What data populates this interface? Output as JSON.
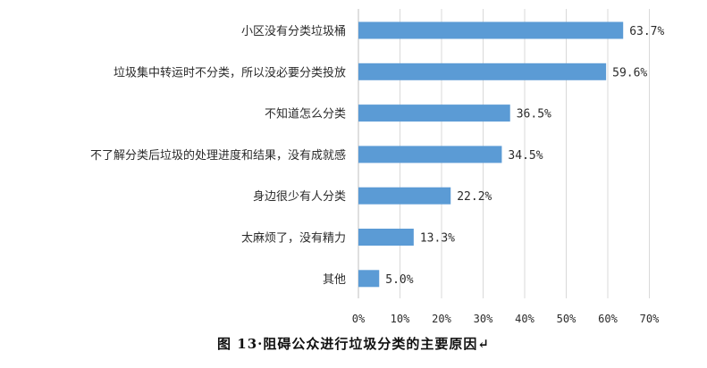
{
  "caption": "图 13·阻碍公众进行垃圾分类的主要原因↵",
  "colors": {
    "bar": "#5b9bd5",
    "grid": "#d9d9d9",
    "text": "#2b2b2b"
  },
  "chart_data": {
    "type": "bar",
    "orientation": "horizontal",
    "categories": [
      "小区没有分类垃圾桶",
      "垃圾集中转运时不分类，所以没必要分类投放",
      "不知道怎么分类",
      "不了解分类后垃圾的处理进度和结果，没有成就感",
      "身边很少有人分类",
      "太麻烦了，没有精力",
      "其他"
    ],
    "values": [
      63.7,
      59.6,
      36.5,
      34.5,
      22.2,
      13.3,
      5.0
    ],
    "value_labels": [
      "63.7%",
      "59.6%",
      "36.5%",
      "34.5%",
      "22.2%",
      "13.3%",
      "5.0%"
    ],
    "x_ticks": [
      0,
      10,
      20,
      30,
      40,
      50,
      60,
      70
    ],
    "x_tick_labels": [
      "0%",
      "10%",
      "20%",
      "30%",
      "40%",
      "50%",
      "60%",
      "70%"
    ],
    "xlim": [
      0,
      70
    ],
    "grid": true,
    "legend": "none",
    "title": "",
    "xlabel": "",
    "ylabel": ""
  }
}
